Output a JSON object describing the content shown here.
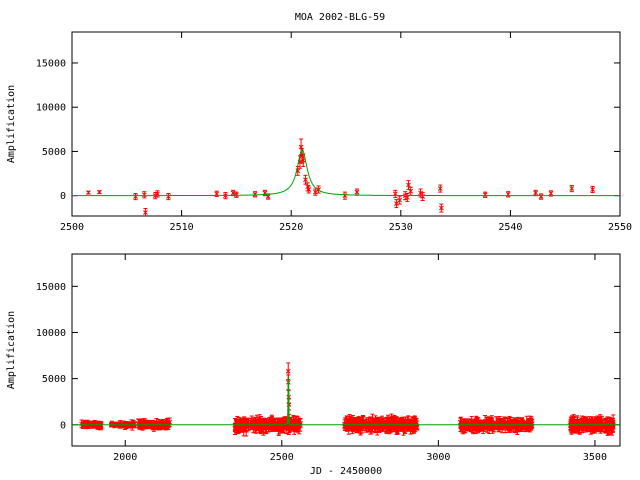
{
  "title": "MOA 2002-BLG-59",
  "colors": {
    "data": "#ff0000",
    "model": "#00a000",
    "axis": "#000000",
    "background": "#ffffff"
  },
  "chart_data": [
    {
      "type": "scatter",
      "panel": "top",
      "title": "MOA 2002-BLG-59",
      "xlabel": "",
      "ylabel": "Amplification",
      "xlim": [
        2500,
        2550
      ],
      "ylim": [
        -2300,
        18500
      ],
      "xticks": [
        2500,
        2510,
        2520,
        2530,
        2540,
        2550
      ],
      "yticks": [
        0,
        5000,
        10000,
        15000
      ],
      "grid": false,
      "legend": "none",
      "model_curve": {
        "name": "",
        "type": "point-lens",
        "t0": 2521.0,
        "tE": 0.55,
        "peak": 5200,
        "baseline": 0,
        "color": "#00a000"
      },
      "series": [
        {
          "color": "#ff0000",
          "points": [
            {
              "x": 2501.5,
              "y": 350,
              "err": 150
            },
            {
              "x": 2502.5,
              "y": 400,
              "err": 150
            },
            {
              "x": 2505.8,
              "y": -100,
              "err": 350
            },
            {
              "x": 2506.6,
              "y": 100,
              "err": 350
            },
            {
              "x": 2506.7,
              "y": -1900,
              "err": 450
            },
            {
              "x": 2507.6,
              "y": 0,
              "err": 350
            },
            {
              "x": 2507.8,
              "y": 200,
              "err": 350
            },
            {
              "x": 2508.8,
              "y": -100,
              "err": 350
            },
            {
              "x": 2513.2,
              "y": 200,
              "err": 300
            },
            {
              "x": 2514.0,
              "y": 0,
              "err": 350
            },
            {
              "x": 2514.7,
              "y": 300,
              "err": 300
            },
            {
              "x": 2515.0,
              "y": 100,
              "err": 300
            },
            {
              "x": 2516.7,
              "y": 150,
              "err": 300
            },
            {
              "x": 2517.6,
              "y": 300,
              "err": 300
            },
            {
              "x": 2517.9,
              "y": -100,
              "err": 300
            },
            {
              "x": 2520.6,
              "y": 2800,
              "err": 500
            },
            {
              "x": 2520.8,
              "y": 3800,
              "err": 700
            },
            {
              "x": 2520.9,
              "y": 5500,
              "err": 900
            },
            {
              "x": 2521.0,
              "y": 4500,
              "err": 800
            },
            {
              "x": 2521.1,
              "y": 4000,
              "err": 700
            },
            {
              "x": 2521.3,
              "y": 1800,
              "err": 500
            },
            {
              "x": 2521.5,
              "y": 1000,
              "err": 450
            },
            {
              "x": 2521.6,
              "y": 700,
              "err": 400
            },
            {
              "x": 2522.2,
              "y": 400,
              "err": 350
            },
            {
              "x": 2522.5,
              "y": 700,
              "err": 400
            },
            {
              "x": 2524.9,
              "y": 0,
              "err": 400
            },
            {
              "x": 2526.0,
              "y": 400,
              "err": 350
            },
            {
              "x": 2529.5,
              "y": 200,
              "err": 400
            },
            {
              "x": 2529.6,
              "y": -900,
              "err": 450
            },
            {
              "x": 2529.9,
              "y": -500,
              "err": 450
            },
            {
              "x": 2530.4,
              "y": 0,
              "err": 450
            },
            {
              "x": 2530.6,
              "y": -200,
              "err": 450
            },
            {
              "x": 2530.7,
              "y": 1200,
              "err": 500
            },
            {
              "x": 2530.9,
              "y": 500,
              "err": 450
            },
            {
              "x": 2531.8,
              "y": 300,
              "err": 450
            },
            {
              "x": 2532.0,
              "y": -100,
              "err": 450
            },
            {
              "x": 2533.6,
              "y": 800,
              "err": 400
            },
            {
              "x": 2533.7,
              "y": -1400,
              "err": 450
            },
            {
              "x": 2537.7,
              "y": 100,
              "err": 300
            },
            {
              "x": 2539.8,
              "y": 150,
              "err": 300
            },
            {
              "x": 2542.3,
              "y": 300,
              "err": 300
            },
            {
              "x": 2542.8,
              "y": -100,
              "err": 300
            },
            {
              "x": 2543.7,
              "y": 250,
              "err": 300
            },
            {
              "x": 2545.6,
              "y": 800,
              "err": 350
            },
            {
              "x": 2547.5,
              "y": 700,
              "err": 350
            }
          ]
        }
      ]
    },
    {
      "type": "scatter",
      "panel": "bottom",
      "title": "",
      "xlabel": "JD - 2450000",
      "ylabel": "Amplification",
      "xlim": [
        1830,
        3580
      ],
      "ylim": [
        -2300,
        18500
      ],
      "xticks": [
        2000,
        2500,
        3000,
        3500
      ],
      "yticks": [
        0,
        5000,
        10000,
        15000
      ],
      "grid": false,
      "legend": "none",
      "model_curve": {
        "name": "",
        "type": "point-lens",
        "t0": 2521.0,
        "tE": 0.55,
        "peak": 5200,
        "baseline": 0,
        "color": "#00a000"
      },
      "series": [
        {
          "color": "#ff0000",
          "seasons": [
            {
              "start": 1860,
              "end": 1925,
              "count": 40,
              "spread": 300,
              "err": 350
            },
            {
              "start": 1950,
              "end": 1975,
              "count": 12,
              "spread": 200,
              "err": 250
            },
            {
              "start": 1980,
              "end": 2030,
              "count": 30,
              "spread": 300,
              "err": 350
            },
            {
              "start": 2040,
              "end": 2145,
              "count": 70,
              "spread": 450,
              "err": 450
            },
            {
              "start": 2350,
              "end": 2560,
              "count": 200,
              "spread": 700,
              "err": 650
            },
            {
              "start": 2700,
              "end": 2935,
              "count": 220,
              "spread": 700,
              "err": 650
            },
            {
              "start": 3070,
              "end": 3300,
              "count": 200,
              "spread": 600,
              "err": 600
            },
            {
              "start": 3420,
              "end": 3560,
              "count": 150,
              "spread": 700,
              "err": 650
            }
          ],
          "points": [
            {
              "x": 2520.5,
              "y": 5800,
              "err": 900
            },
            {
              "x": 2521.0,
              "y": 4600,
              "err": 800
            },
            {
              "x": 2522.0,
              "y": 3000,
              "err": 700
            },
            {
              "x": 2523.0,
              "y": 2200,
              "err": 600
            }
          ]
        }
      ]
    }
  ]
}
